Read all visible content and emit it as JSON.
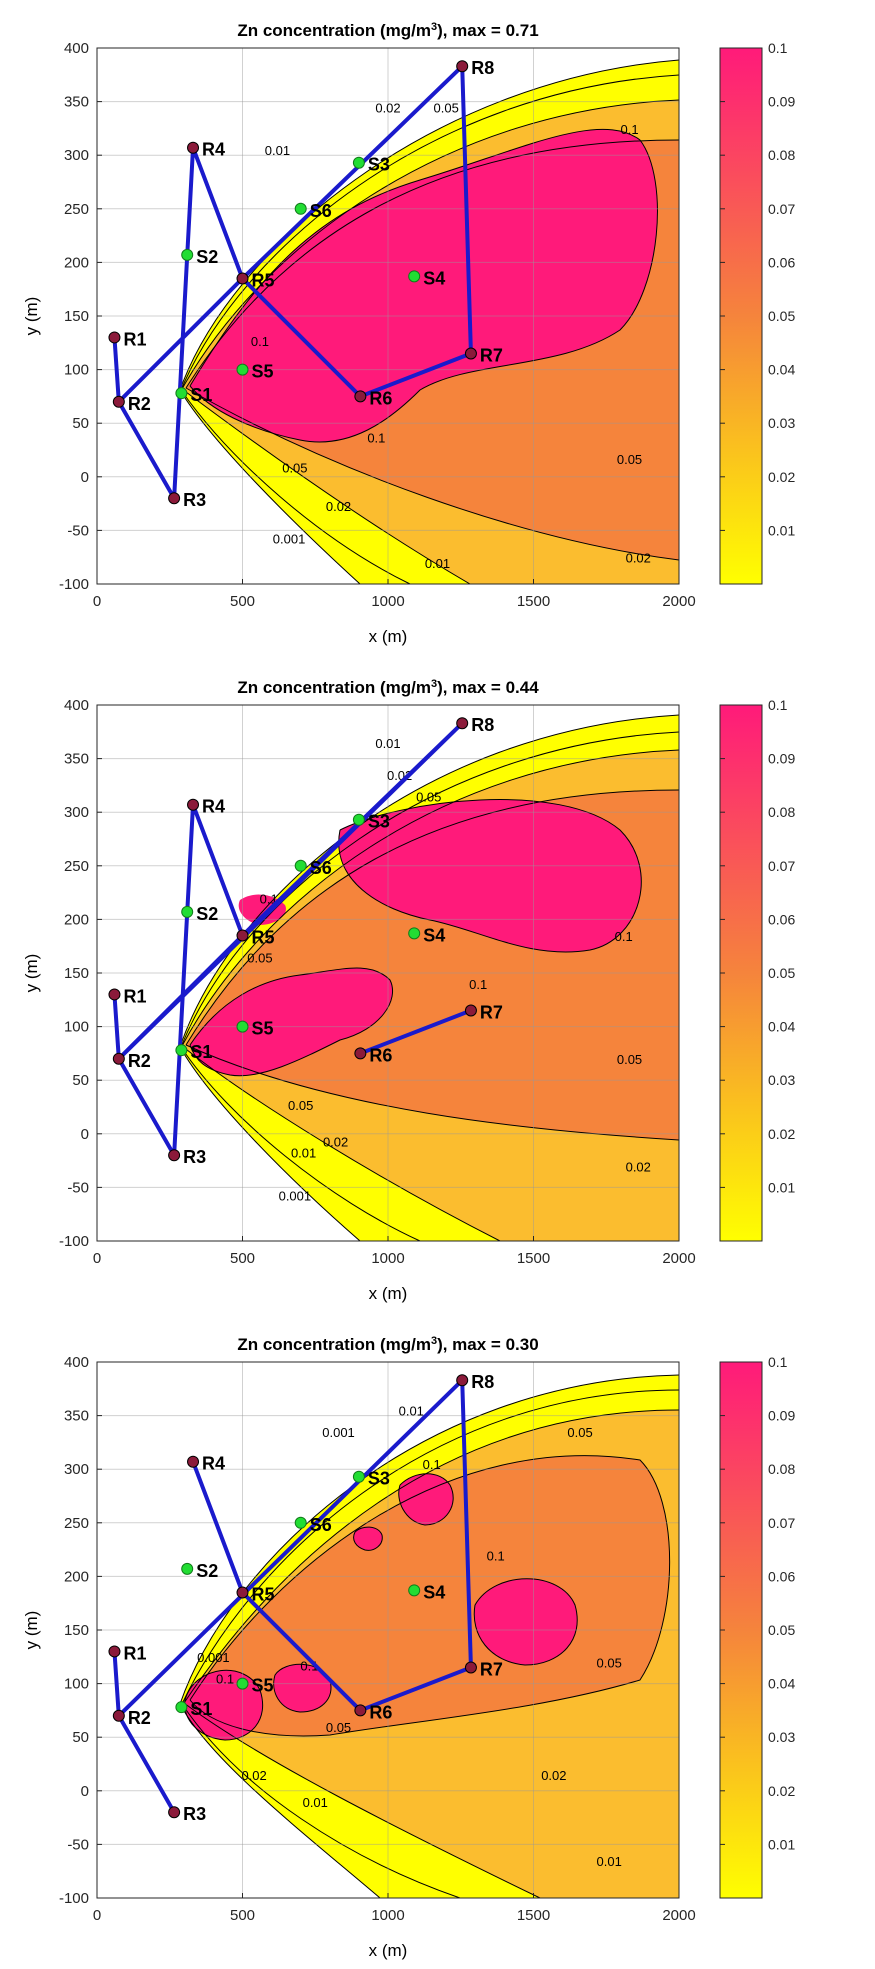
{
  "colors": {
    "background": "#ffffff",
    "route": "#1a1acc",
    "receptor": "#8b1a3a",
    "source": "#22dd33",
    "contour_line": "#000000",
    "color_low": "#ffff00",
    "color_mid": "#f5843c",
    "color_high": "#ff1a7a"
  },
  "chart_data": [
    {
      "type": "contour",
      "title_main": "Zn concentration (mg/m",
      "title_sup": "3",
      "title_tail": "), max =  0.71",
      "xlabel": "x (m)",
      "ylabel": "y (m)",
      "xlim": [
        0,
        2000
      ],
      "ylim": [
        -100,
        400
      ],
      "xticks": [
        "0",
        "500",
        "1000",
        "1500",
        "2000"
      ],
      "yticks": [
        "-100",
        "-50",
        "0",
        "50",
        "100",
        "150",
        "200",
        "250",
        "300",
        "350",
        "400"
      ],
      "grid": true,
      "colorbar": {
        "range": [
          0,
          0.1
        ],
        "ticks": [
          "0.01",
          "0.02",
          "0.03",
          "0.04",
          "0.05",
          "0.06",
          "0.07",
          "0.08",
          "0.09",
          "0.1"
        ]
      },
      "sources": [
        {
          "id": "S1",
          "x": 290,
          "y": 78
        },
        {
          "id": "S2",
          "x": 310,
          "y": 207
        },
        {
          "id": "S3",
          "x": 900,
          "y": 293
        },
        {
          "id": "S4",
          "x": 1090,
          "y": 187
        },
        {
          "id": "S5",
          "x": 500,
          "y": 100
        },
        {
          "id": "S6",
          "x": 700,
          "y": 250
        }
      ],
      "receptors": [
        {
          "id": "R1",
          "x": 60,
          "y": 130
        },
        {
          "id": "R2",
          "x": 75,
          "y": 70
        },
        {
          "id": "R3",
          "x": 265,
          "y": -20
        },
        {
          "id": "R4",
          "x": 330,
          "y": 307
        },
        {
          "id": "R5",
          "x": 500,
          "y": 185
        },
        {
          "id": "R6",
          "x": 905,
          "y": 75
        },
        {
          "id": "R7",
          "x": 1285,
          "y": 115
        },
        {
          "id": "R8",
          "x": 1255,
          "y": 383
        }
      ],
      "route": [
        "R1",
        "R2",
        "R3",
        "R4",
        "R5",
        "R6",
        "R7",
        "R8",
        "R5",
        "R2"
      ],
      "contour_labels": [
        {
          "text": "0.1",
          "x": 1830,
          "y": 320
        },
        {
          "text": "0.01",
          "x": 620,
          "y": 300
        },
        {
          "text": "0.02",
          "x": 1000,
          "y": 340
        },
        {
          "text": "0.05",
          "x": 1200,
          "y": 340
        },
        {
          "text": "0.1",
          "x": 560,
          "y": 122
        },
        {
          "text": "0.1",
          "x": 960,
          "y": 32
        },
        {
          "text": "0.05",
          "x": 680,
          "y": 4
        },
        {
          "text": "0.02",
          "x": 830,
          "y": -32
        },
        {
          "text": "0.001",
          "x": 660,
          "y": -62
        },
        {
          "text": "0.01",
          "x": 1170,
          "y": -85
        },
        {
          "text": "0.05",
          "x": 1830,
          "y": 12
        },
        {
          "text": "0.02",
          "x": 1860,
          "y": -80
        }
      ]
    },
    {
      "type": "contour",
      "title_main": "Zn concentration (mg/m",
      "title_sup": "3",
      "title_tail": "), max =  0.44",
      "xlabel": "x (m)",
      "ylabel": "y (m)",
      "xlim": [
        0,
        2000
      ],
      "ylim": [
        -100,
        400
      ],
      "xticks": [
        "0",
        "500",
        "1000",
        "1500",
        "2000"
      ],
      "yticks": [
        "-100",
        "-50",
        "0",
        "50",
        "100",
        "150",
        "200",
        "250",
        "300",
        "350",
        "400"
      ],
      "grid": true,
      "colorbar": {
        "range": [
          0,
          0.1
        ],
        "ticks": [
          "0.01",
          "0.02",
          "0.03",
          "0.04",
          "0.05",
          "0.06",
          "0.07",
          "0.08",
          "0.09",
          "0.1"
        ]
      },
      "sources": [
        {
          "id": "S1",
          "x": 290,
          "y": 78
        },
        {
          "id": "S2",
          "x": 310,
          "y": 207
        },
        {
          "id": "S3",
          "x": 900,
          "y": 293
        },
        {
          "id": "S4",
          "x": 1090,
          "y": 187
        },
        {
          "id": "S5",
          "x": 500,
          "y": 100
        },
        {
          "id": "S6",
          "x": 700,
          "y": 250
        }
      ],
      "receptors": [
        {
          "id": "R1",
          "x": 60,
          "y": 130
        },
        {
          "id": "R2",
          "x": 75,
          "y": 70
        },
        {
          "id": "R3",
          "x": 265,
          "y": -20
        },
        {
          "id": "R4",
          "x": 330,
          "y": 307
        },
        {
          "id": "R5",
          "x": 500,
          "y": 185
        },
        {
          "id": "R6",
          "x": 905,
          "y": 75
        },
        {
          "id": "R7",
          "x": 1285,
          "y": 115
        },
        {
          "id": "R8",
          "x": 1255,
          "y": 383
        }
      ],
      "route": [
        "R1",
        "R2",
        "R3",
        "R4",
        "R5",
        "R2",
        "R8",
        "R5"
      ],
      "route_extra": [
        [
          "R6",
          "R7"
        ]
      ],
      "contour_labels": [
        {
          "text": "0.01",
          "x": 1000,
          "y": 360
        },
        {
          "text": "0.02",
          "x": 1040,
          "y": 330
        },
        {
          "text": "0.05",
          "x": 1140,
          "y": 310
        },
        {
          "text": "0.1",
          "x": 590,
          "y": 215
        },
        {
          "text": "0.05",
          "x": 560,
          "y": 160
        },
        {
          "text": "0.1",
          "x": 1810,
          "y": 180
        },
        {
          "text": "0.1",
          "x": 1310,
          "y": 135
        },
        {
          "text": "0.05",
          "x": 1830,
          "y": 65
        },
        {
          "text": "0.05",
          "x": 700,
          "y": 22
        },
        {
          "text": "0.02",
          "x": 820,
          "y": -12
        },
        {
          "text": "0.01",
          "x": 710,
          "y": -22
        },
        {
          "text": "0.001",
          "x": 680,
          "y": -62
        },
        {
          "text": "0.02",
          "x": 1860,
          "y": -35
        }
      ]
    },
    {
      "type": "contour",
      "title_main": "Zn concentration (mg/m",
      "title_sup": "3",
      "title_tail": "), max =  0.30",
      "xlabel": "x (m)",
      "ylabel": "y (m)",
      "xlim": [
        0,
        2000
      ],
      "ylim": [
        -100,
        400
      ],
      "xticks": [
        "0",
        "500",
        "1000",
        "1500",
        "2000"
      ],
      "yticks": [
        "-100",
        "-50",
        "0",
        "50",
        "100",
        "150",
        "200",
        "250",
        "300",
        "350",
        "400"
      ],
      "grid": true,
      "colorbar": {
        "range": [
          0,
          0.1
        ],
        "ticks": [
          "0.01",
          "0.02",
          "0.03",
          "0.04",
          "0.05",
          "0.06",
          "0.07",
          "0.08",
          "0.09",
          "0.1"
        ]
      },
      "sources": [
        {
          "id": "S1",
          "x": 290,
          "y": 78
        },
        {
          "id": "S2",
          "x": 310,
          "y": 207
        },
        {
          "id": "S3",
          "x": 900,
          "y": 293
        },
        {
          "id": "S4",
          "x": 1090,
          "y": 187
        },
        {
          "id": "S5",
          "x": 500,
          "y": 100
        },
        {
          "id": "S6",
          "x": 700,
          "y": 250
        }
      ],
      "receptors": [
        {
          "id": "R1",
          "x": 60,
          "y": 130
        },
        {
          "id": "R2",
          "x": 75,
          "y": 70
        },
        {
          "id": "R3",
          "x": 265,
          "y": -20
        },
        {
          "id": "R4",
          "x": 330,
          "y": 307
        },
        {
          "id": "R5",
          "x": 500,
          "y": 185
        },
        {
          "id": "R6",
          "x": 905,
          "y": 75
        },
        {
          "id": "R7",
          "x": 1285,
          "y": 115
        },
        {
          "id": "R8",
          "x": 1255,
          "y": 383
        }
      ],
      "route": [
        "R3",
        "R2",
        "R1"
      ],
      "route_extra": [
        [
          "R2",
          "R8",
          "R7",
          "R6",
          "R5",
          "R4"
        ]
      ],
      "contour_labels": [
        {
          "text": "0.001",
          "x": 830,
          "y": 330
        },
        {
          "text": "0.01",
          "x": 1080,
          "y": 350
        },
        {
          "text": "0.05",
          "x": 1660,
          "y": 330
        },
        {
          "text": "0.1",
          "x": 1150,
          "y": 300
        },
        {
          "text": "0.1",
          "x": 1370,
          "y": 215
        },
        {
          "text": "0.1",
          "x": 440,
          "y": 100
        },
        {
          "text": "0.1",
          "x": 730,
          "y": 112
        },
        {
          "text": "0.001",
          "x": 400,
          "y": 120
        },
        {
          "text": "0.05",
          "x": 830,
          "y": 55
        },
        {
          "text": "0.02",
          "x": 540,
          "y": 10
        },
        {
          "text": "0.01",
          "x": 750,
          "y": -15
        },
        {
          "text": "0.02",
          "x": 1570,
          "y": 10
        },
        {
          "text": "0.05",
          "x": 1760,
          "y": 115
        },
        {
          "text": "0.01",
          "x": 1760,
          "y": -70
        }
      ]
    }
  ]
}
